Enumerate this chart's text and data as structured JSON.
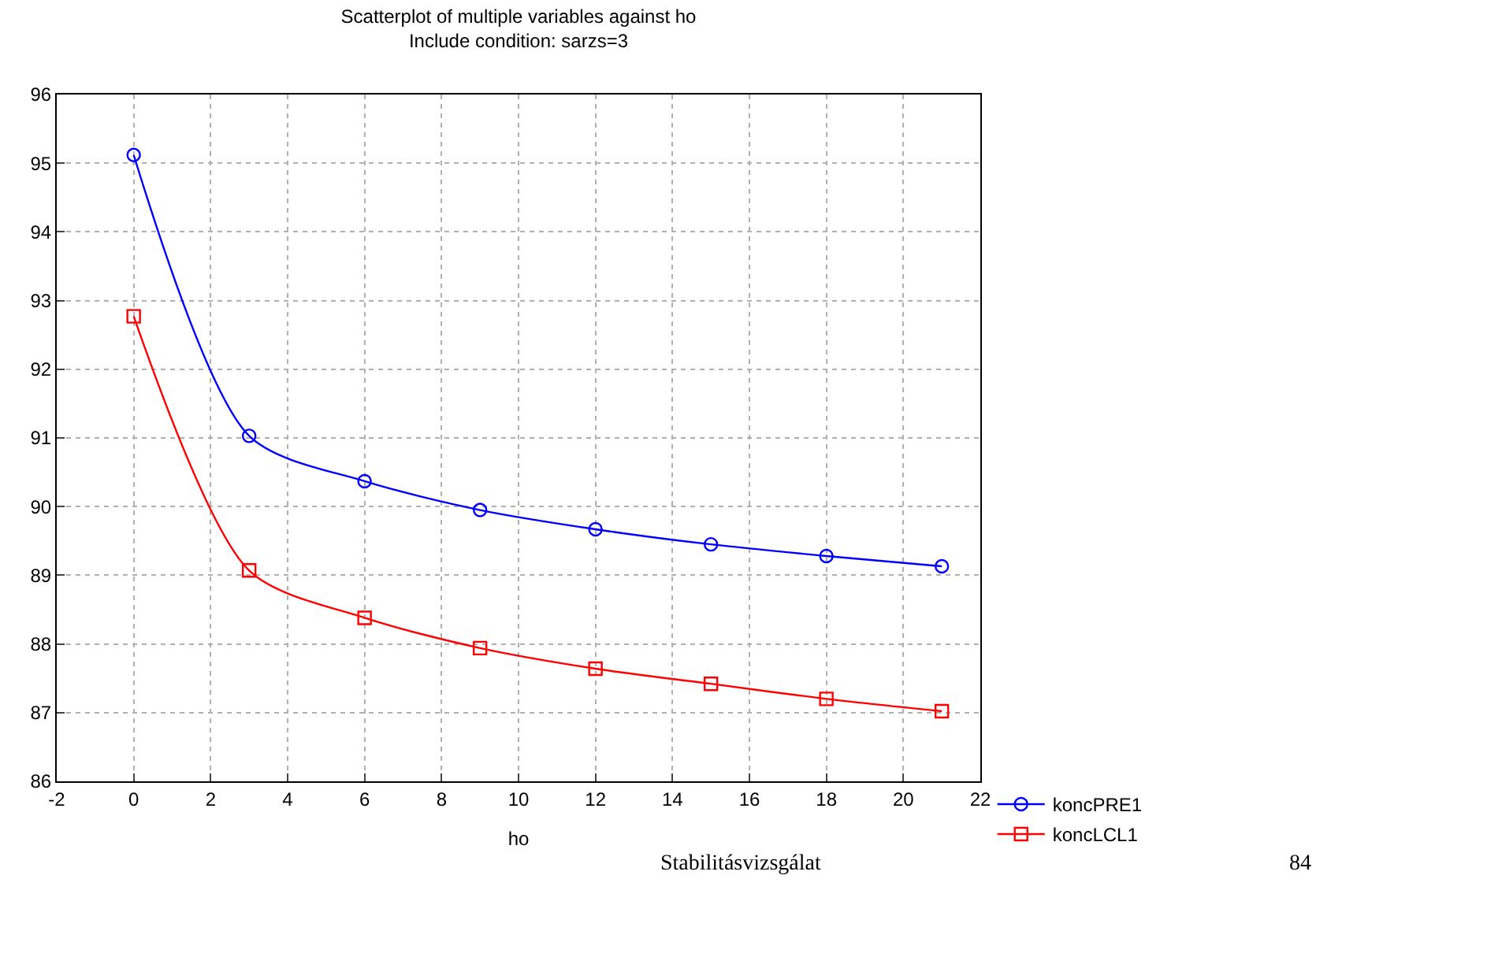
{
  "chart_data": {
    "type": "line",
    "title": "Scatterplot of multiple variables against ho",
    "subtitle": "Include condition: sarzs=3",
    "xlabel": "ho",
    "x": [
      0,
      3,
      6,
      9,
      12,
      15,
      18,
      21
    ],
    "series": [
      {
        "name": "koncPRE1",
        "color": "#0000ff",
        "marker": "circle",
        "values": [
          95.12,
          91.03,
          90.37,
          89.95,
          89.67,
          89.45,
          89.28,
          89.13
        ]
      },
      {
        "name": "koncLCL1",
        "color": "#ff0000",
        "marker": "square",
        "values": [
          92.77,
          89.07,
          88.38,
          87.94,
          87.64,
          87.42,
          87.2,
          87.02
        ]
      }
    ],
    "xlim": [
      -2,
      22
    ],
    "xticks": [
      -2,
      0,
      2,
      4,
      6,
      8,
      10,
      12,
      14,
      16,
      18,
      20,
      22
    ],
    "ylim": [
      86,
      96
    ],
    "yticks": [
      86,
      87,
      88,
      89,
      90,
      91,
      92,
      93,
      94,
      95,
      96
    ],
    "grid": true,
    "legend": "bottom right",
    "line_style": "solid",
    "annotations": [
      "Stabilitásvizsgálat",
      "84"
    ]
  }
}
